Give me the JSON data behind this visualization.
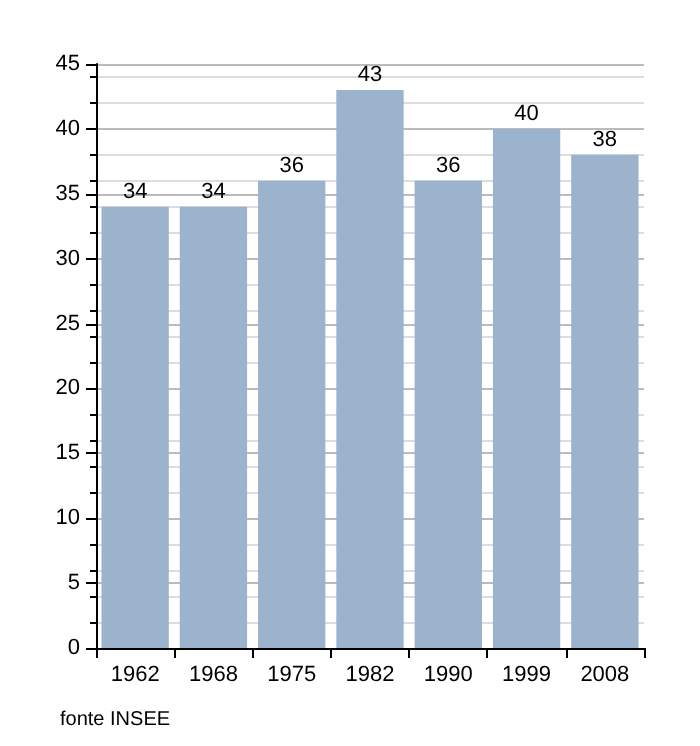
{
  "chart_data": {
    "type": "bar",
    "categories": [
      "1962",
      "1968",
      "1975",
      "1982",
      "1990",
      "1999",
      "2008"
    ],
    "values": [
      34,
      34,
      36,
      43,
      36,
      40,
      38
    ],
    "color": "#9bb3cd",
    "ylim": [
      0,
      45
    ],
    "yticks": [
      0,
      5,
      10,
      15,
      20,
      25,
      30,
      35,
      40,
      45
    ],
    "grid": true,
    "data_labels": true,
    "annotations": [
      "fonte INSEE"
    ]
  }
}
